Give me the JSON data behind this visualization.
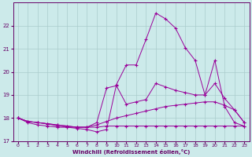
{
  "bg_color": "#cceaea",
  "grid_color": "#aacccc",
  "line_color": "#990099",
  "marker": "+",
  "xlabel": "Windchill (Refroidissement éolien,°C)",
  "xlabel_color": "#660066",
  "tick_color": "#660066",
  "xlim": [
    -0.5,
    23.5
  ],
  "ylim": [
    17.0,
    23.0
  ],
  "yticks": [
    17,
    18,
    19,
    20,
    21,
    22
  ],
  "xticks": [
    0,
    1,
    2,
    3,
    4,
    5,
    6,
    7,
    8,
    9,
    10,
    11,
    12,
    13,
    14,
    15,
    16,
    17,
    18,
    19,
    20,
    21,
    22,
    23
  ],
  "lines": [
    {
      "x": [
        0,
        1,
        2,
        3,
        4,
        5,
        6,
        7,
        8,
        9,
        10,
        11,
        12,
        13,
        14,
        15,
        16,
        17,
        18,
        19,
        20,
        21,
        22,
        23
      ],
      "y": [
        18.0,
        17.8,
        17.7,
        17.65,
        17.6,
        17.6,
        17.6,
        17.6,
        17.6,
        17.65,
        17.65,
        17.65,
        17.65,
        17.65,
        17.65,
        17.65,
        17.65,
        17.65,
        17.65,
        17.65,
        17.65,
        17.65,
        17.65,
        17.65
      ]
    },
    {
      "x": [
        0,
        1,
        2,
        3,
        4,
        5,
        6,
        7,
        8,
        9,
        10,
        11,
        12,
        13,
        14,
        15,
        16,
        17,
        18,
        19,
        20,
        21,
        22,
        23
      ],
      "y": [
        18.0,
        17.85,
        17.8,
        17.75,
        17.7,
        17.65,
        17.6,
        17.6,
        17.7,
        17.85,
        18.0,
        18.1,
        18.2,
        18.3,
        18.4,
        18.5,
        18.55,
        18.6,
        18.65,
        18.7,
        18.7,
        18.55,
        18.35,
        17.8
      ]
    },
    {
      "x": [
        0,
        1,
        2,
        3,
        4,
        5,
        6,
        7,
        8,
        9,
        10,
        11,
        12,
        13,
        14,
        15,
        16,
        17,
        18,
        19,
        20,
        21,
        22,
        23
      ],
      "y": [
        18.0,
        17.85,
        17.8,
        17.75,
        17.7,
        17.65,
        17.6,
        17.6,
        17.8,
        19.3,
        19.4,
        18.6,
        18.7,
        18.8,
        19.5,
        19.35,
        19.2,
        19.1,
        19.0,
        19.0,
        19.5,
        18.85,
        18.35,
        17.8
      ]
    },
    {
      "x": [
        0,
        1,
        2,
        3,
        4,
        5,
        6,
        7,
        8,
        9,
        10,
        11,
        12,
        13,
        14,
        15,
        16,
        17,
        18,
        19,
        20,
        21,
        22,
        23
      ],
      "y": [
        18.0,
        17.85,
        17.8,
        17.75,
        17.65,
        17.6,
        17.55,
        17.5,
        17.4,
        17.5,
        19.45,
        20.3,
        20.3,
        21.4,
        22.55,
        22.3,
        21.9,
        21.05,
        20.5,
        19.0,
        20.5,
        18.5,
        17.8,
        17.65
      ]
    }
  ]
}
